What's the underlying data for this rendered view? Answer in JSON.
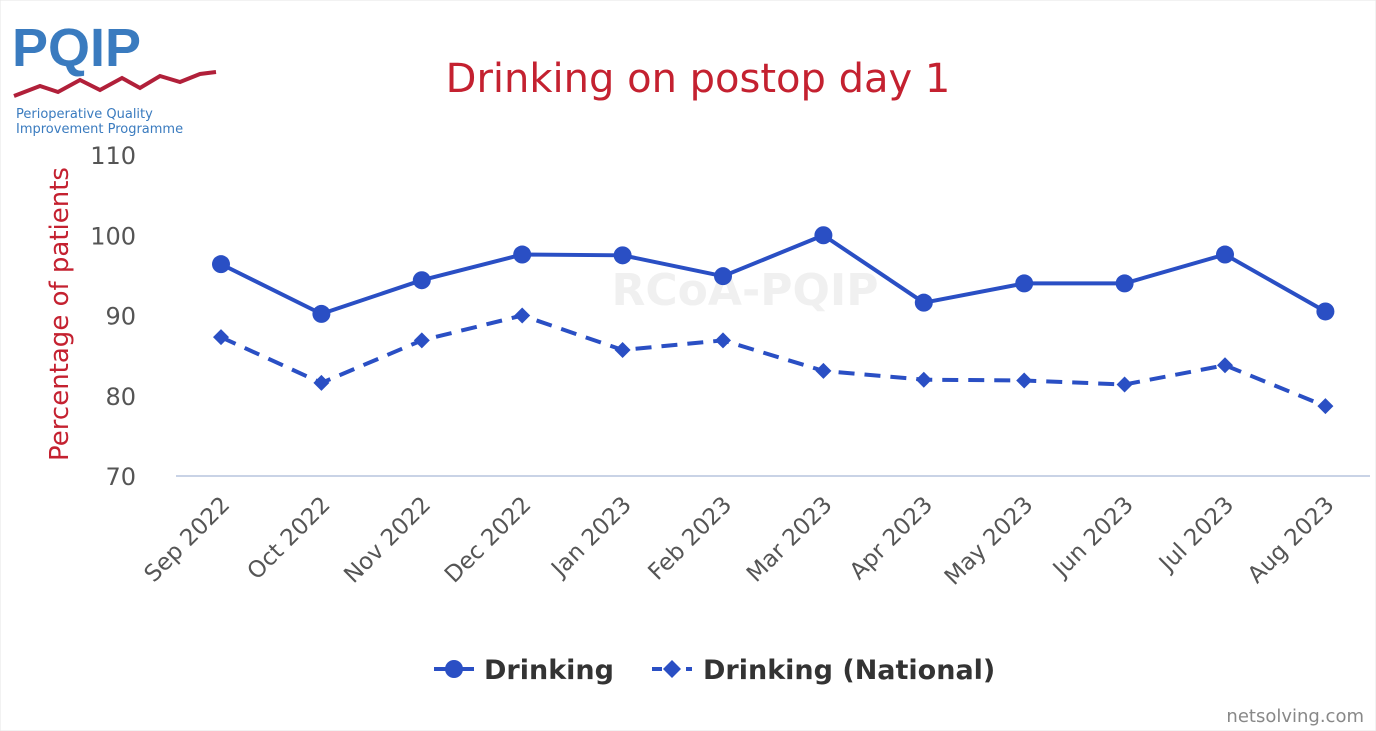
{
  "logo": {
    "wordmark": "PQIP",
    "subtitle_line1": "Perioperative Quality",
    "subtitle_line2": "Improvement Programme"
  },
  "watermark": "RCoA-PQIP",
  "credit": "netsolving.com",
  "colors": {
    "title": "#c42130",
    "ylabel": "#c42130",
    "series": "#2a4fc4",
    "tick_text": "#555555",
    "axis_line": "#c9d3e6",
    "logo_blue": "#3a7bbf",
    "logo_red": "#b1203a",
    "logo_text": "#3a7bbf"
  },
  "chart_data": {
    "type": "line",
    "title": "Drinking on postop day 1",
    "xlabel": "",
    "ylabel": "Percentage of patients",
    "ylim": [
      70,
      110
    ],
    "yticks": [
      70,
      80,
      90,
      100,
      110
    ],
    "grid": false,
    "legend_position": "bottom-center",
    "categories": [
      "Sep 2022",
      "Oct 2022",
      "Nov 2022",
      "Dec 2022",
      "Jan 2023",
      "Feb 2023",
      "Mar 2023",
      "Apr 2023",
      "May 2023",
      "Jun 2023",
      "Jul 2023",
      "Aug 2023"
    ],
    "series": [
      {
        "name": "Drinking",
        "marker": "circle",
        "dash": "solid",
        "values": [
          96.4,
          90.2,
          94.4,
          97.6,
          97.5,
          94.9,
          100.0,
          91.6,
          94.0,
          94.0,
          97.6,
          90.5
        ]
      },
      {
        "name": "Drinking (National)",
        "marker": "diamond",
        "dash": "dashed",
        "values": [
          87.3,
          81.6,
          86.9,
          90.0,
          85.7,
          86.9,
          83.1,
          82.0,
          81.9,
          81.4,
          83.8,
          78.7
        ]
      }
    ]
  }
}
